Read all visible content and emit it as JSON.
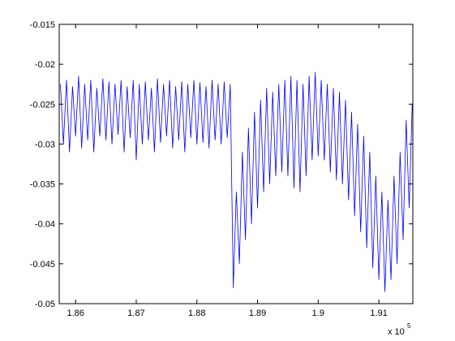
{
  "chart_data": {
    "type": "line",
    "x_multiplier": "x 10",
    "x_multiplier_exp": "5",
    "grid": false,
    "xlim": [
      1.8573,
      1.9156
    ],
    "ylim": [
      -0.05,
      -0.015
    ],
    "xticks": [
      1.86,
      1.87,
      1.88,
      1.89,
      1.9,
      1.91
    ],
    "yticks": [
      -0.05,
      -0.045,
      -0.04,
      -0.035,
      -0.03,
      -0.025,
      -0.02,
      -0.015
    ],
    "x": [
      1.8575,
      1.858,
      1.8585,
      1.859,
      1.8595,
      1.86,
      1.8605,
      1.861,
      1.8615,
      1.862,
      1.8625,
      1.863,
      1.8635,
      1.864,
      1.8645,
      1.865,
      1.8655,
      1.866,
      1.8665,
      1.867,
      1.8675,
      1.868,
      1.8685,
      1.869,
      1.8695,
      1.87,
      1.8705,
      1.871,
      1.8715,
      1.872,
      1.8725,
      1.873,
      1.8735,
      1.874,
      1.8745,
      1.875,
      1.8755,
      1.876,
      1.8765,
      1.877,
      1.8775,
      1.878,
      1.8785,
      1.879,
      1.8795,
      1.88,
      1.8805,
      1.881,
      1.8815,
      1.882,
      1.8825,
      1.883,
      1.8835,
      1.884,
      1.8845,
      1.885,
      1.8855,
      1.886,
      1.8865,
      1.887,
      1.8875,
      1.888,
      1.8885,
      1.889,
      1.8895,
      1.89,
      1.8905,
      1.891,
      1.8915,
      1.892,
      1.8925,
      1.893,
      1.8935,
      1.894,
      1.8945,
      1.895,
      1.8955,
      1.896,
      1.8965,
      1.897,
      1.8975,
      1.898,
      1.8985,
      1.899,
      1.8995,
      1.9,
      1.9005,
      1.901,
      1.9015,
      1.902,
      1.9025,
      1.903,
      1.9035,
      1.904,
      1.9045,
      1.905,
      1.9055,
      1.906,
      1.9065,
      1.907,
      1.9075,
      1.908,
      1.9085,
      1.909,
      1.9095,
      1.91,
      1.9105,
      1.911,
      1.9115,
      1.912,
      1.9125,
      1.913,
      1.9135,
      1.914,
      1.9145,
      1.915,
      1.9155
    ],
    "series": [
      {
        "color": "#0000ff",
        "values": [
          -0.0225,
          -0.03,
          -0.022,
          -0.031,
          -0.0228,
          -0.029,
          -0.0215,
          -0.0305,
          -0.0225,
          -0.0295,
          -0.022,
          -0.031,
          -0.023,
          -0.029,
          -0.0218,
          -0.0295,
          -0.0222,
          -0.03,
          -0.0225,
          -0.0288,
          -0.022,
          -0.031,
          -0.0228,
          -0.0292,
          -0.022,
          -0.032,
          -0.0225,
          -0.03,
          -0.0222,
          -0.0295,
          -0.023,
          -0.031,
          -0.0218,
          -0.0298,
          -0.0225,
          -0.029,
          -0.022,
          -0.0305,
          -0.0228,
          -0.0295,
          -0.0222,
          -0.031,
          -0.0225,
          -0.0292,
          -0.022,
          -0.03,
          -0.0223,
          -0.0298,
          -0.0228,
          -0.0305,
          -0.022,
          -0.0295,
          -0.0225,
          -0.03,
          -0.0222,
          -0.0292,
          -0.0225,
          -0.048,
          -0.036,
          -0.045,
          -0.031,
          -0.042,
          -0.028,
          -0.04,
          -0.026,
          -0.038,
          -0.0245,
          -0.036,
          -0.023,
          -0.035,
          -0.0235,
          -0.034,
          -0.0225,
          -0.0335,
          -0.022,
          -0.034,
          -0.0215,
          -0.0355,
          -0.022,
          -0.036,
          -0.0225,
          -0.034,
          -0.0215,
          -0.032,
          -0.021,
          -0.0315,
          -0.022,
          -0.032,
          -0.0225,
          -0.0335,
          -0.023,
          -0.0345,
          -0.0235,
          -0.035,
          -0.0245,
          -0.037,
          -0.026,
          -0.039,
          -0.0275,
          -0.041,
          -0.029,
          -0.043,
          -0.031,
          -0.0455,
          -0.034,
          -0.047,
          -0.036,
          -0.0485,
          -0.037,
          -0.047,
          -0.034,
          -0.045,
          -0.031,
          -0.042,
          -0.027,
          -0.038,
          -0.025
        ]
      }
    ]
  }
}
